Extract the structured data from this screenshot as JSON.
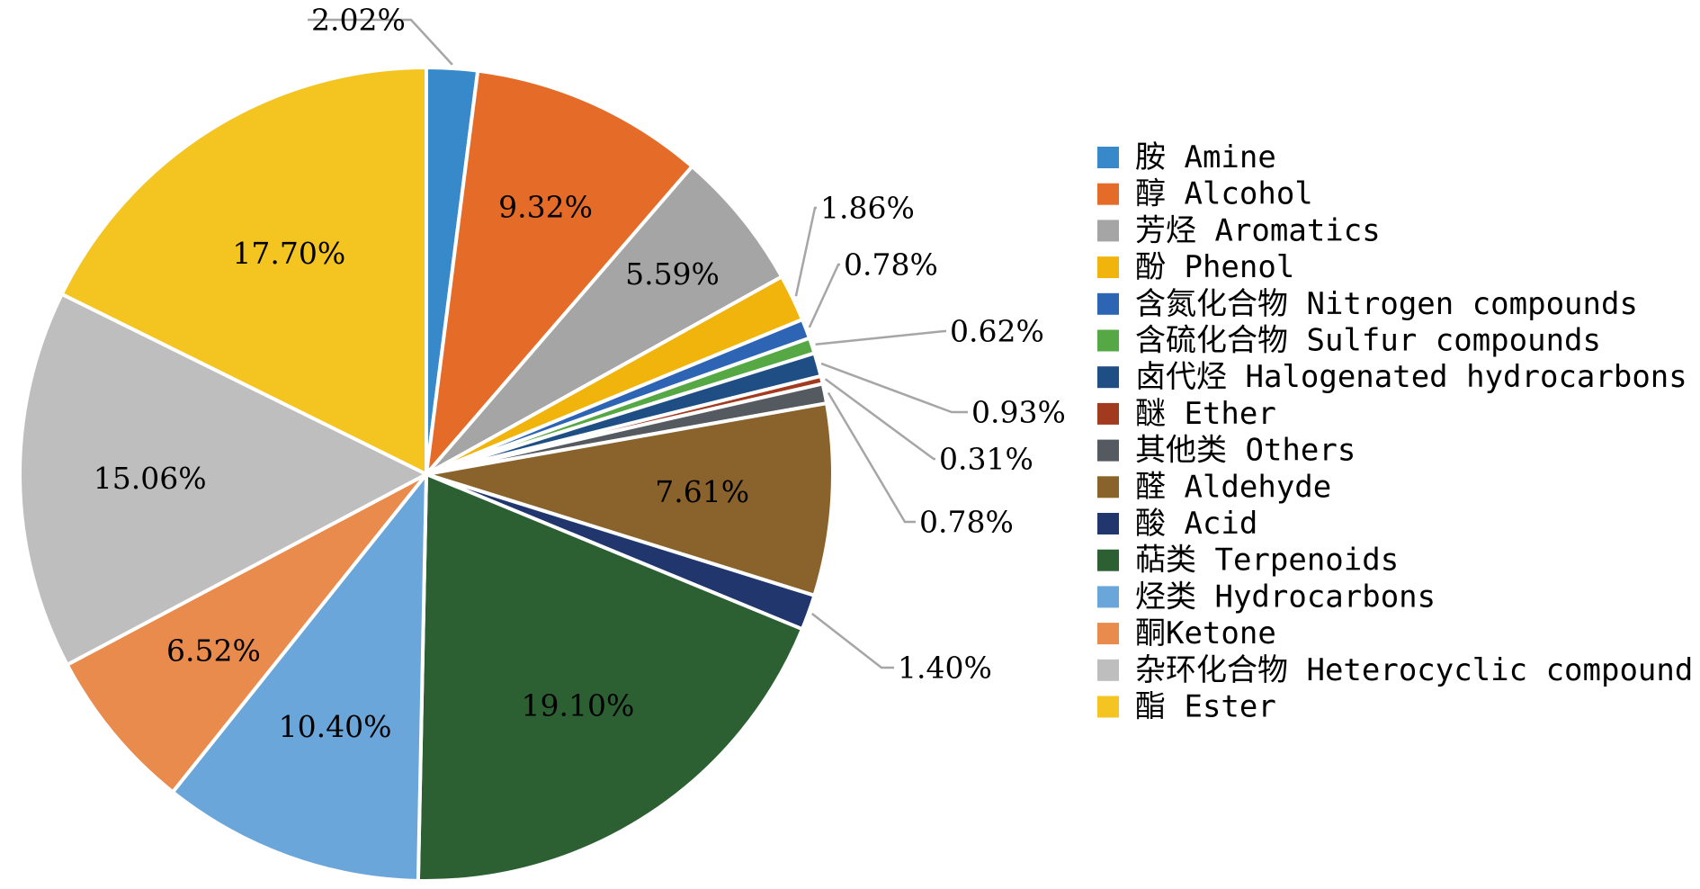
{
  "chart_data": {
    "type": "pie",
    "title": "",
    "legend_position": "right",
    "slices": [
      {
        "label": "胺 Amine",
        "value": 2.02,
        "display": "2.02%",
        "color": "#3789c9"
      },
      {
        "label": "醇 Alcohol",
        "value": 9.32,
        "display": "9.32%",
        "color": "#e46b28"
      },
      {
        "label": "芳烃 Aromatics",
        "value": 5.59,
        "display": "5.59%",
        "color": "#a5a5a5"
      },
      {
        "label": "酚 Phenol",
        "value": 1.86,
        "display": "1.86%",
        "color": "#f0b40d"
      },
      {
        "label": "含氮化合物 Nitrogen compounds",
        "value": 0.78,
        "display": "0.78%",
        "color": "#2e64b4"
      },
      {
        "label": "含硫化合物 Sulfur compounds",
        "value": 0.62,
        "display": "0.62%",
        "color": "#56a845"
      },
      {
        "label": "卤代烃 Halogenated hydrocarbons",
        "value": 0.93,
        "display": "0.93%",
        "color": "#1f4e84"
      },
      {
        "label": "醚 Ether",
        "value": 0.31,
        "display": "0.31%",
        "color": "#a13a1e"
      },
      {
        "label": "其他类 Others",
        "value": 0.78,
        "display": "0.78%",
        "color": "#545a5f"
      },
      {
        "label": "醛 Aldehyde",
        "value": 7.61,
        "display": "7.61%",
        "color": "#8a622b"
      },
      {
        "label": "酸 Acid",
        "value": 1.4,
        "display": "1.40%",
        "color": "#22366e"
      },
      {
        "label": "萜类 Terpenoids",
        "value": 19.1,
        "display": "19.10%",
        "color": "#2c6033"
      },
      {
        "label": "烃类 Hydrocarbons",
        "value": 10.4,
        "display": "10.40%",
        "color": "#6aa6da"
      },
      {
        "label": "酮Ketone",
        "value": 6.52,
        "display": "6.52%",
        "color": "#e98b4d"
      },
      {
        "label": "杂环化合物 Heterocyclic compound",
        "value": 15.06,
        "display": "15.06%",
        "color": "#bebebe"
      },
      {
        "label": "酯 Ester",
        "value": 17.7,
        "display": "17.70%",
        "color": "#f4c420"
      }
    ]
  }
}
